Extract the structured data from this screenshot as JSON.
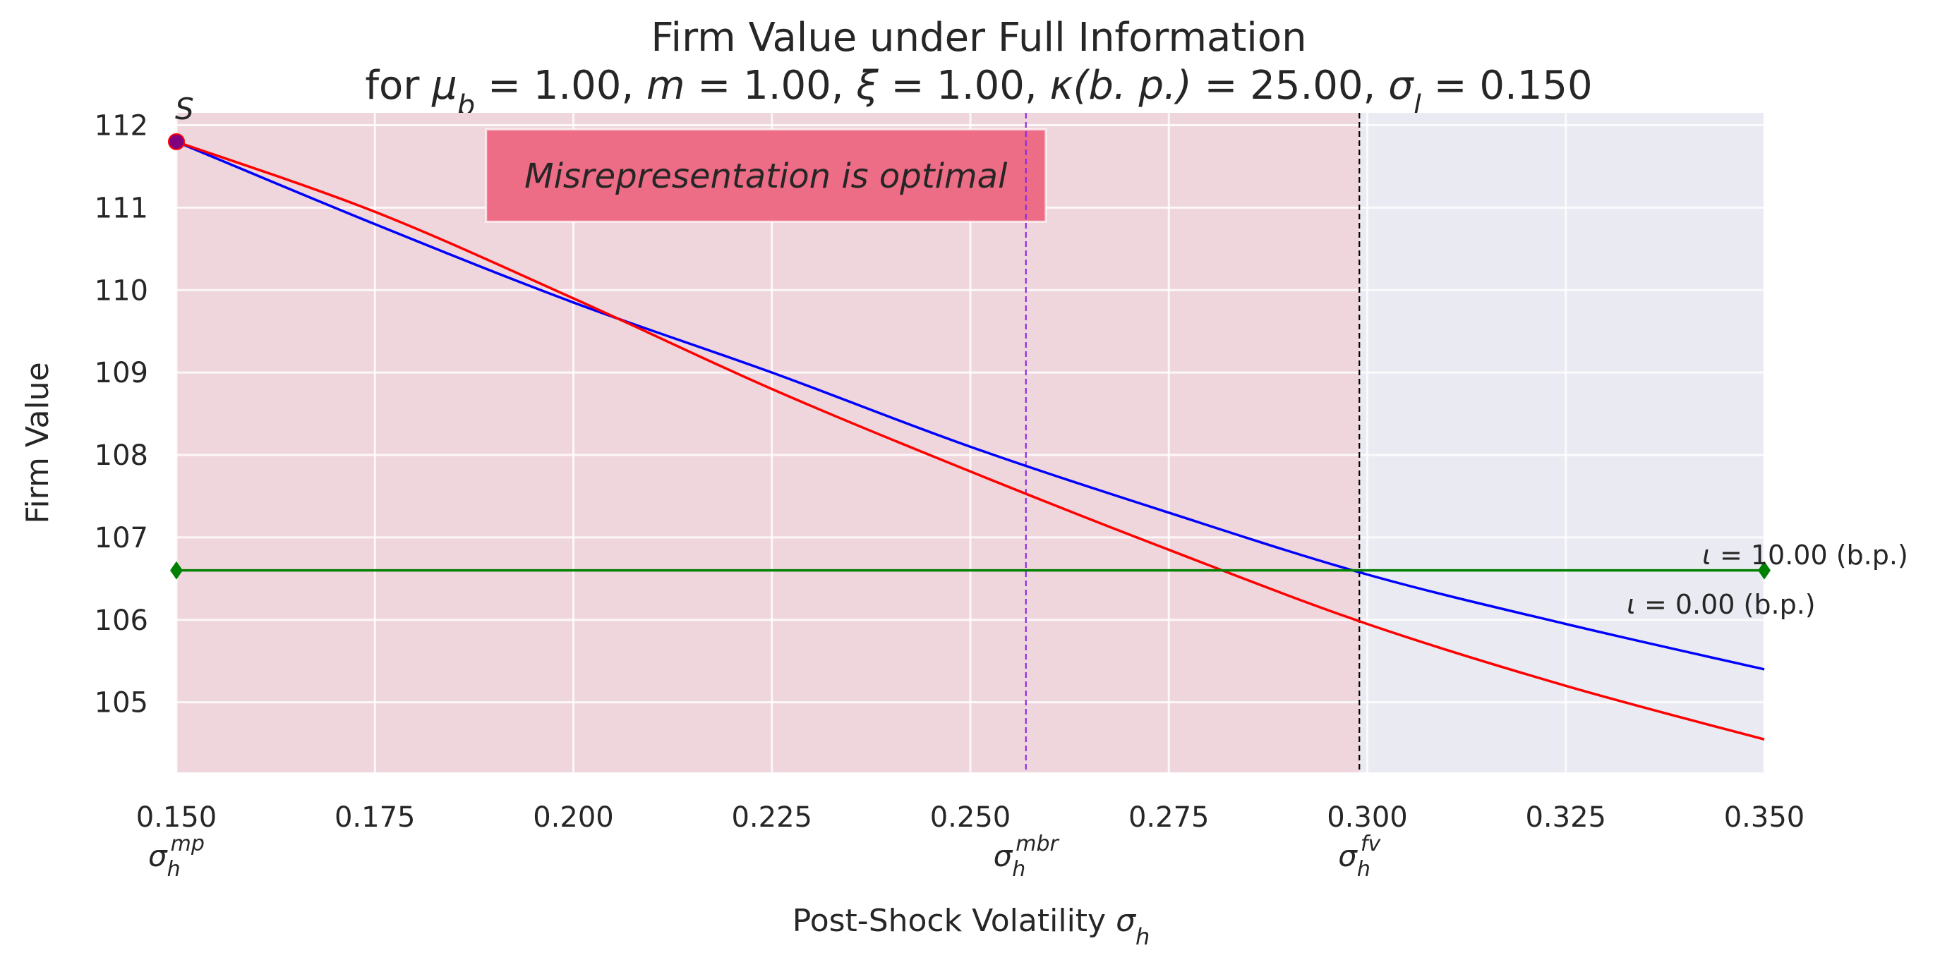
{
  "chart_data": {
    "type": "line",
    "title_line1": "Firm Value under Full Information",
    "title_line2": {
      "prefix": "for ",
      "mu_sym": "μ",
      "mu_sub": "b",
      "mu_val": " 1.00",
      "m_sym": "m",
      "m_val": " 1.00",
      "xi_sym": "ξ",
      "xi_val": " 1.00",
      "kappa_sym": "κ",
      "kappa_unit": "(b. p.)",
      "kappa_val": " 25.00",
      "sigma_sym": "σ",
      "sigma_sub": "l",
      "sigma_val": " 0.150"
    },
    "xlabel": {
      "text": "Post-Shock Volatility ",
      "sym": "σ",
      "sub": "h"
    },
    "ylabel": "Firm Value",
    "xlim": [
      0.15,
      0.35
    ],
    "ylim": [
      104.15,
      112.15
    ],
    "xticks": [
      0.15,
      0.175,
      0.2,
      0.225,
      0.25,
      0.275,
      0.3,
      0.325,
      0.35
    ],
    "xtick_labels": [
      "0.150",
      "0.175",
      "0.200",
      "0.225",
      "0.250",
      "0.275",
      "0.300",
      "0.325",
      "0.350"
    ],
    "yticks": [
      105,
      106,
      107,
      108,
      109,
      110,
      111,
      112
    ],
    "ytick_labels": [
      "105",
      "106",
      "107",
      "108",
      "109",
      "110",
      "111",
      "112"
    ],
    "grid": true,
    "x": [
      0.15,
      0.175,
      0.2,
      0.225,
      0.25,
      0.275,
      0.3,
      0.325,
      0.35
    ],
    "series": [
      {
        "color": "#0000ff",
        "values": [
          111.8,
          110.8,
          109.85,
          109.0,
          108.1,
          107.3,
          106.55,
          105.95,
          105.4
        ]
      },
      {
        "color": "#ff0000",
        "values": [
          111.8,
          110.95,
          109.9,
          108.8,
          107.8,
          106.85,
          105.95,
          105.2,
          104.55
        ]
      },
      {
        "color": "#008000",
        "values": [
          106.6,
          106.6,
          106.6,
          106.6,
          106.6,
          106.6,
          106.6,
          106.6,
          106.6
        ]
      }
    ],
    "series_labels": [
      {
        "text": "10.00 (b.p.)",
        "iota": "ι",
        "eq": " = "
      },
      {
        "text": "0.00 (b.p.)",
        "iota": "ι",
        "eq": " = "
      }
    ],
    "marker_S": {
      "label": "S",
      "x": 0.15,
      "y": 111.8
    },
    "green_endpoints": [
      {
        "x": 0.15,
        "y": 106.6
      },
      {
        "x": 0.35,
        "y": 106.6
      }
    ],
    "shaded_region": {
      "x_from": 0.15,
      "x_to": 0.299,
      "color": "#f2c4cc"
    },
    "vlines": [
      {
        "x": 0.257,
        "color": "#8a2be2",
        "style": "dashed",
        "sym": "σ",
        "sub": "h",
        "sup": "mbr"
      },
      {
        "x": 0.299,
        "color": "#000000",
        "style": "dashed",
        "sym": "σ",
        "sub": "h",
        "sup": "fv"
      }
    ],
    "left_marker_label": {
      "sym": "σ",
      "sub": "h",
      "sup": "mp",
      "x": 0.15
    },
    "annotation": {
      "text": "Misrepresentation is optimal",
      "x_from": 0.189,
      "x_to": 0.2595,
      "y_from": 110.83,
      "y_to": 111.95,
      "color": "#ee6d86"
    },
    "colors": {
      "plot_bg": "#eaeaf2",
      "grid": "#ffffff",
      "text": "#262626"
    }
  }
}
